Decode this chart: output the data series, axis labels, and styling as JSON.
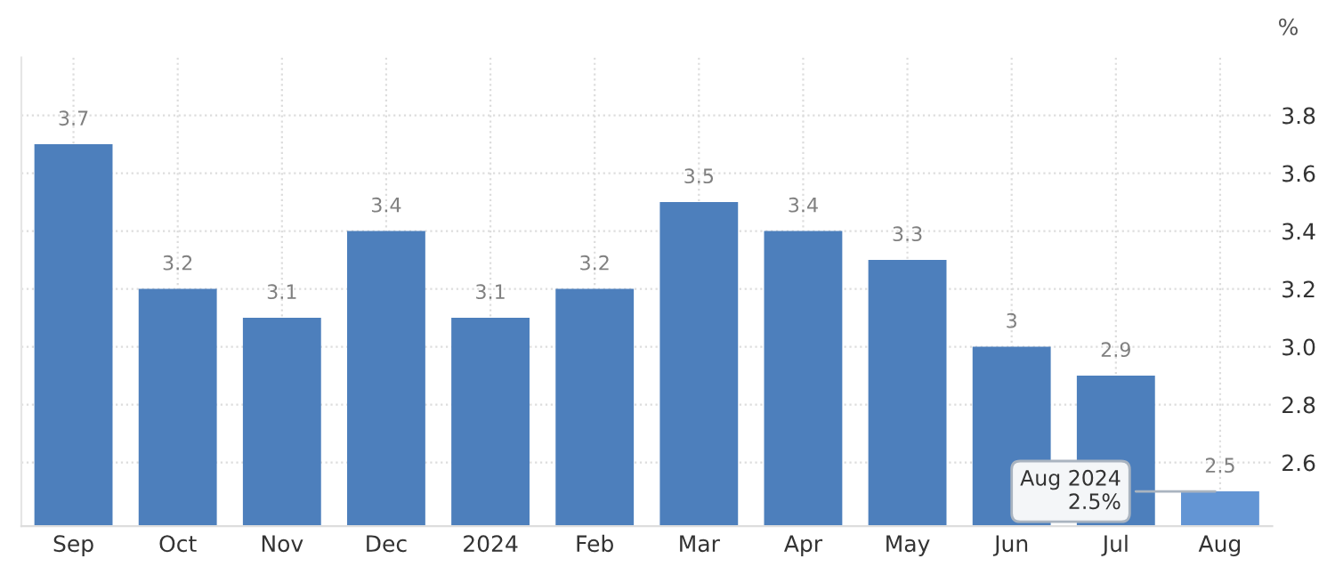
{
  "chart_data": {
    "type": "bar",
    "ylabel": "%",
    "categories": [
      "Sep",
      "Oct",
      "Nov",
      "Dec",
      "2024",
      "Feb",
      "Mar",
      "Apr",
      "May",
      "Jun",
      "Jul",
      "Aug"
    ],
    "values": [
      3.7,
      3.2,
      3.1,
      3.4,
      3.1,
      3.2,
      3.5,
      3.4,
      3.3,
      3,
      2.9,
      2.5
    ],
    "colors": [
      "#4d7fbc",
      "#4d7fbc",
      "#4d7fbc",
      "#4d7fbc",
      "#4d7fbc",
      "#4d7fbc",
      "#4d7fbc",
      "#4d7fbc",
      "#4d7fbc",
      "#4d7fbc",
      "#4d7fbc",
      "#6395d4"
    ],
    "ylim": [
      2.38,
      4.0
    ],
    "yticks": [
      {
        "value": 2.6,
        "label": "2.6"
      },
      {
        "value": 2.8,
        "label": "2.8"
      },
      {
        "value": 3.0,
        "label": "3.0"
      },
      {
        "value": 3.2,
        "label": "3.2"
      },
      {
        "value": 3.4,
        "label": "3.4"
      },
      {
        "value": 3.6,
        "label": "3.6"
      },
      {
        "value": 3.8,
        "label": "3.8"
      }
    ],
    "data_labels": true,
    "grid": true,
    "legend": false,
    "annotations": [
      {
        "text": "Aug 2024\n2.5%",
        "x": "Aug",
        "y": 2.5
      }
    ]
  }
}
